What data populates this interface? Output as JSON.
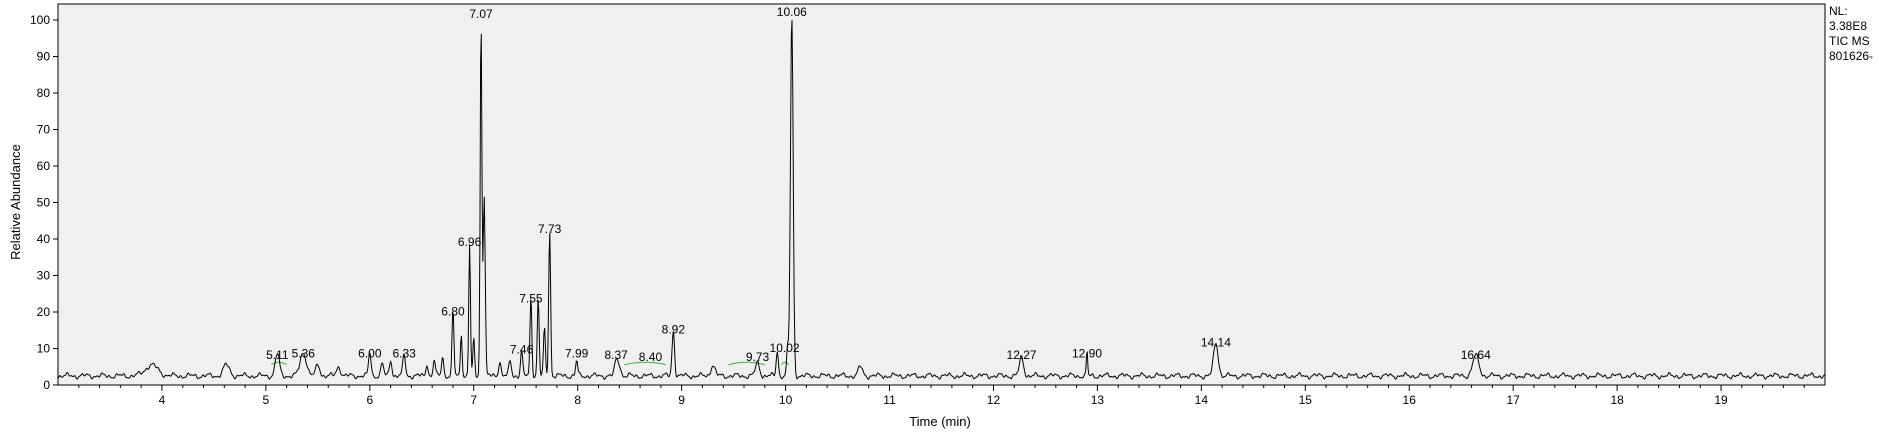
{
  "chart_data": {
    "type": "line",
    "xlabel": "Time (min)",
    "ylabel": "Relative Abundance",
    "xlim": [
      3.0,
      20.0
    ],
    "ylim": [
      0,
      100
    ],
    "x_ticks": [
      4,
      5,
      6,
      7,
      8,
      9,
      10,
      11,
      12,
      13,
      14,
      15,
      16,
      17,
      18,
      19
    ],
    "y_ticks": [
      0,
      10,
      20,
      30,
      40,
      50,
      60,
      70,
      80,
      90,
      100
    ],
    "trace_color": "#000000",
    "baseline_color": "#3cb043",
    "baseline": 2.5,
    "peaks": [
      {
        "rt": 3.9,
        "height": 3.0,
        "width": 0.06
      },
      {
        "rt": 4.62,
        "height": 3.0,
        "width": 0.03
      },
      {
        "rt": 5.11,
        "height": 6.0,
        "width": 0.02
      },
      {
        "rt": 5.36,
        "height": 6.5,
        "width": 0.03
      },
      {
        "rt": 5.5,
        "height": 3.0,
        "width": 0.02
      },
      {
        "rt": 5.7,
        "height": 2.5,
        "width": 0.02
      },
      {
        "rt": 6.0,
        "height": 6.5,
        "width": 0.012
      },
      {
        "rt": 6.12,
        "height": 3.5,
        "width": 0.012
      },
      {
        "rt": 6.2,
        "height": 4.5,
        "width": 0.012
      },
      {
        "rt": 6.33,
        "height": 6.0,
        "width": 0.012
      },
      {
        "rt": 6.55,
        "height": 3.5,
        "width": 0.01
      },
      {
        "rt": 6.62,
        "height": 4.5,
        "width": 0.01
      },
      {
        "rt": 6.7,
        "height": 5.5,
        "width": 0.01
      },
      {
        "rt": 6.8,
        "height": 18.0,
        "width": 0.009
      },
      {
        "rt": 6.88,
        "height": 12.0,
        "width": 0.008
      },
      {
        "rt": 6.96,
        "height": 36.0,
        "width": 0.008
      },
      {
        "rt": 7.0,
        "height": 10.0,
        "width": 0.008
      },
      {
        "rt": 7.07,
        "height": 99.0,
        "width": 0.008
      },
      {
        "rt": 7.1,
        "height": 50.0,
        "width": 0.01
      },
      {
        "rt": 7.25,
        "height": 4.0,
        "width": 0.012
      },
      {
        "rt": 7.35,
        "height": 4.0,
        "width": 0.012
      },
      {
        "rt": 7.46,
        "height": 7.0,
        "width": 0.01
      },
      {
        "rt": 7.55,
        "height": 21.5,
        "width": 0.009
      },
      {
        "rt": 7.62,
        "height": 21.0,
        "width": 0.009
      },
      {
        "rt": 7.68,
        "height": 13.0,
        "width": 0.009
      },
      {
        "rt": 7.73,
        "height": 40.0,
        "width": 0.009
      },
      {
        "rt": 7.99,
        "height": 4.0,
        "width": 0.01
      },
      {
        "rt": 8.37,
        "height": 4.0,
        "width": 0.015
      },
      {
        "rt": 8.4,
        "height": 3.0,
        "width": 0.015
      },
      {
        "rt": 8.92,
        "height": 12.5,
        "width": 0.012
      },
      {
        "rt": 9.3,
        "height": 3.0,
        "width": 0.02
      },
      {
        "rt": 9.73,
        "height": 3.5,
        "width": 0.02
      },
      {
        "rt": 9.92,
        "height": 7.0,
        "width": 0.01
      },
      {
        "rt": 10.02,
        "height": 7.5,
        "width": 0.01
      },
      {
        "rt": 10.06,
        "height": 99.5,
        "width": 0.013
      },
      {
        "rt": 10.72,
        "height": 2.5,
        "width": 0.02
      },
      {
        "rt": 12.27,
        "height": 5.0,
        "width": 0.02
      },
      {
        "rt": 12.9,
        "height": 7.0,
        "width": 0.006
      },
      {
        "rt": 14.14,
        "height": 9.0,
        "width": 0.022
      },
      {
        "rt": 16.64,
        "height": 5.5,
        "width": 0.03
      }
    ],
    "peak_labels": [
      {
        "text": "5.11",
        "x": 5.11,
        "y": 6.0
      },
      {
        "text": "5.36",
        "x": 5.36,
        "y": 6.5
      },
      {
        "text": "6.00",
        "x": 6.0,
        "y": 6.5
      },
      {
        "text": "6.33",
        "x": 6.33,
        "y": 6.5
      },
      {
        "text": "6.80",
        "x": 6.8,
        "y": 18.0
      },
      {
        "text": "6.96",
        "x": 6.96,
        "y": 37.0
      },
      {
        "text": "7.07",
        "x": 7.07,
        "y": 99.5
      },
      {
        "text": "7.46",
        "x": 7.46,
        "y": 7.5
      },
      {
        "text": "7.55",
        "x": 7.55,
        "y": 21.5
      },
      {
        "text": "7.73",
        "x": 7.73,
        "y": 40.5
      },
      {
        "text": "7.99",
        "x": 7.99,
        "y": 6.5
      },
      {
        "text": "8.37",
        "x": 8.37,
        "y": 6.0
      },
      {
        "text": "8.40",
        "x": 8.7,
        "y": 5.5
      },
      {
        "text": "8.92",
        "x": 8.92,
        "y": 13.0
      },
      {
        "text": "9.73",
        "x": 9.73,
        "y": 5.5
      },
      {
        "text": "10.02",
        "x": 9.99,
        "y": 8.0
      },
      {
        "text": "10.06",
        "x": 10.06,
        "y": 100.0
      },
      {
        "text": "12.27",
        "x": 12.27,
        "y": 6.0
      },
      {
        "text": "12.90",
        "x": 12.9,
        "y": 6.5
      },
      {
        "text": "14.14",
        "x": 14.14,
        "y": 9.5
      },
      {
        "text": "16.64",
        "x": 16.64,
        "y": 6.0
      }
    ],
    "baseline_segments": [
      {
        "x1": 5.05,
        "x2": 5.2
      },
      {
        "x1": 8.45,
        "x2": 8.85
      },
      {
        "x1": 9.45,
        "x2": 9.8
      },
      {
        "x1": 9.96,
        "x2": 10.03
      }
    ]
  },
  "side_info": [
    "NL:",
    "3.38E8",
    "TIC  MS",
    "801626-"
  ]
}
